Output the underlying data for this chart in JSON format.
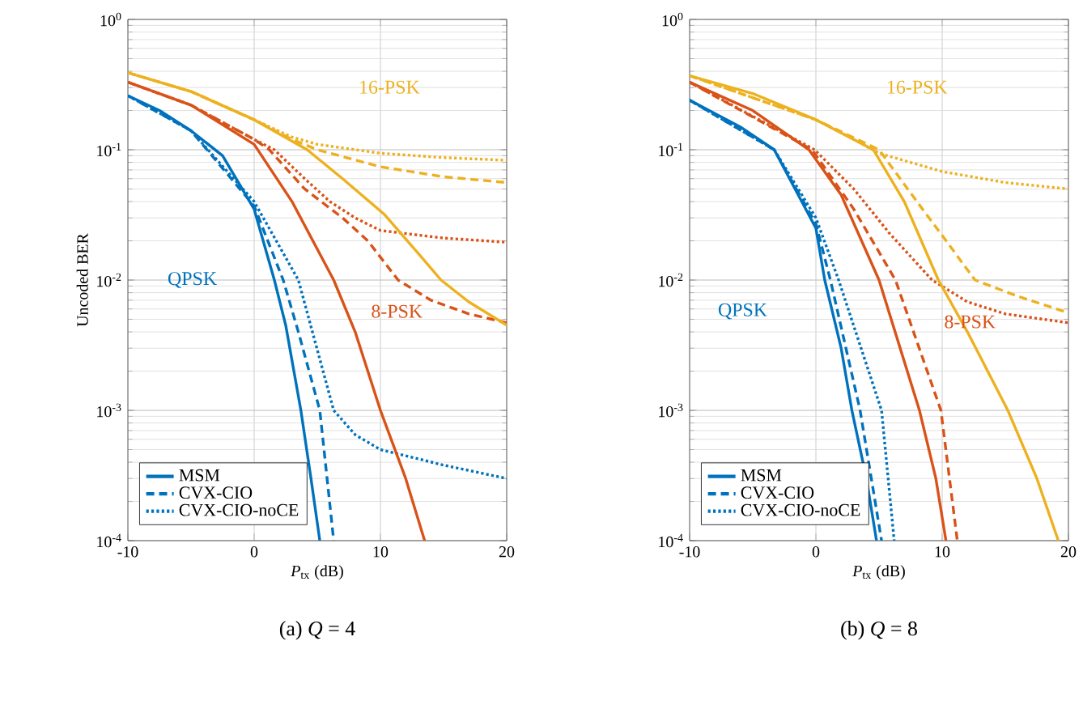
{
  "chart_data": [
    {
      "type": "line",
      "title": "(a) *Q* = 4",
      "xlabel": "*P*$_{tx}$ (dB)",
      "ylabel": "Uncoded BER",
      "log": "y",
      "grid": true,
      "legend": "bottom left",
      "xlim": [
        -10,
        20
      ],
      "ylim": [
        0.0001,
        1
      ],
      "xticks": [
        -10,
        0,
        10,
        20
      ],
      "yticks": [
        {
          "value": 0.0001,
          "label": "10$^{-4}$"
        },
        {
          "value": 0.001,
          "label": "10$^{-3}$"
        },
        {
          "value": 0.01,
          "label": "10$^{-2}$"
        },
        {
          "value": 0.1,
          "label": "10$^{-1}$"
        },
        {
          "value": 1,
          "label": "10$^{0}$"
        }
      ],
      "annotations": [
        "QPSK",
        "8-PSK",
        "16-PSK"
      ],
      "series": [
        {
          "name": "MSM",
          "color": "#0072bd",
          "line_style": "solid",
          "x": [
            -10,
            -7.5,
            -5,
            -2.5,
            0,
            1.6,
            2.5,
            3.7,
            4.5,
            5.2
          ],
          "values": [
            0.26,
            0.2,
            0.14,
            0.09,
            0.035,
            0.01,
            0.0045,
            0.001,
            0.0003,
            0.0001
          ]
        },
        {
          "name": "CVX-CIO",
          "color": "#0072bd",
          "line_style": "dashed",
          "x": [
            -10,
            -5,
            0,
            2.3,
            3.5,
            5.2,
            6.3
          ],
          "values": [
            0.26,
            0.14,
            0.037,
            0.01,
            0.004,
            0.001,
            0.0001
          ]
        },
        {
          "name": "CVX-CIO-noCE",
          "color": "#0072bd",
          "line_style": "dotted",
          "x": [
            -10,
            -5,
            0,
            3.5,
            6.3,
            8,
            10,
            15,
            20
          ],
          "values": [
            0.26,
            0.14,
            0.04,
            0.01,
            0.001,
            0.00065,
            0.0005,
            0.00038,
            0.0003
          ]
        },
        {
          "color": "#d95319",
          "line_style": "solid",
          "x": [
            -10,
            -5,
            0,
            3,
            6.3,
            8,
            10,
            12,
            13.5
          ],
          "values": [
            0.33,
            0.22,
            0.11,
            0.04,
            0.01,
            0.004,
            0.001,
            0.0003,
            0.0001
          ]
        },
        {
          "color": "#d95319",
          "line_style": "dashed",
          "x": [
            -10,
            -5,
            0,
            1.2,
            4,
            7,
            9,
            11.4,
            14,
            17,
            20
          ],
          "values": [
            0.33,
            0.22,
            0.12,
            0.1,
            0.05,
            0.03,
            0.02,
            0.01,
            0.007,
            0.0055,
            0.0047
          ]
        },
        {
          "color": "#d95319",
          "line_style": "dotted",
          "x": [
            -10,
            -5,
            0,
            1.6,
            4,
            6,
            8,
            10,
            15,
            20
          ],
          "values": [
            0.33,
            0.22,
            0.12,
            0.1,
            0.06,
            0.04,
            0.03,
            0.024,
            0.021,
            0.0195
          ]
        },
        {
          "color": "#edb120",
          "line_style": "solid",
          "x": [
            -10,
            -5,
            0,
            4.2,
            7,
            10.3,
            13,
            14.8,
            17,
            20
          ],
          "values": [
            0.39,
            0.28,
            0.17,
            0.1,
            0.06,
            0.032,
            0.016,
            0.01,
            0.0068,
            0.0045
          ]
        },
        {
          "color": "#edb120",
          "line_style": "dashed",
          "x": [
            -10,
            -5,
            0,
            3,
            5,
            10,
            15,
            20
          ],
          "values": [
            0.39,
            0.28,
            0.17,
            0.12,
            0.1,
            0.074,
            0.062,
            0.056
          ]
        },
        {
          "color": "#edb120",
          "line_style": "dotted",
          "x": [
            -10,
            -5,
            0,
            3,
            5,
            10,
            15,
            20
          ],
          "values": [
            0.39,
            0.28,
            0.17,
            0.125,
            0.11,
            0.094,
            0.087,
            0.083
          ]
        }
      ]
    },
    {
      "type": "line",
      "title": "(b) *Q* = 8",
      "xlabel": "*P*$_{tx}$ (dB)",
      "log": "y",
      "grid": true,
      "legend": "bottom left",
      "xlim": [
        -10,
        20
      ],
      "ylim": [
        0.0001,
        1
      ],
      "xticks": [
        -10,
        0,
        10,
        20
      ],
      "yticks": [
        {
          "value": 0.0001,
          "label": "10$^{-4}$"
        },
        {
          "value": 0.001,
          "label": "10$^{-3}$"
        },
        {
          "value": 0.01,
          "label": "10$^{-2}$"
        },
        {
          "value": 0.1,
          "label": "10$^{-1}$"
        },
        {
          "value": 1,
          "label": "10$^{0}$"
        }
      ],
      "annotations": [
        "QPSK",
        "8-PSK",
        "16-PSK"
      ],
      "series": [
        {
          "name": "MSM",
          "color": "#0072bd",
          "line_style": "solid",
          "x": [
            -10,
            -6,
            -3.3,
            0,
            0.7,
            2,
            2.85,
            4,
            4.8
          ],
          "values": [
            0.24,
            0.15,
            0.1,
            0.025,
            0.01,
            0.003,
            0.001,
            0.0003,
            0.0001
          ]
        },
        {
          "name": "CVX-CIO",
          "color": "#0072bd",
          "line_style": "dashed",
          "x": [
            -10,
            -3.3,
            0,
            1.15,
            3.5,
            5.2
          ],
          "values": [
            0.24,
            0.1,
            0.027,
            0.01,
            0.001,
            0.0001
          ]
        },
        {
          "name": "CVX-CIO-noCE",
          "color": "#0072bd",
          "line_style": "dotted",
          "x": [
            -10,
            -3.3,
            0,
            1.8,
            5.2,
            6.2
          ],
          "values": [
            0.24,
            0.1,
            0.03,
            0.01,
            0.001,
            0.0001
          ]
        },
        {
          "color": "#d95319",
          "line_style": "solid",
          "x": [
            -10,
            -5,
            -0.55,
            2,
            5,
            8.2,
            9.5,
            10.3
          ],
          "values": [
            0.33,
            0.2,
            0.1,
            0.045,
            0.01,
            0.001,
            0.0003,
            0.0001
          ]
        },
        {
          "color": "#d95319",
          "line_style": "dashed",
          "x": [
            -10,
            -0.3,
            3,
            6.3,
            9.9,
            11.2
          ],
          "values": [
            0.33,
            0.1,
            0.035,
            0.01,
            0.001,
            0.0001
          ]
        },
        {
          "color": "#d95319",
          "line_style": "dotted",
          "x": [
            -10,
            -0.1,
            3,
            5.8,
            9.2,
            12,
            15,
            20
          ],
          "values": [
            0.33,
            0.1,
            0.05,
            0.023,
            0.01,
            0.0068,
            0.0055,
            0.0047
          ]
        },
        {
          "color": "#edb120",
          "line_style": "solid",
          "x": [
            -10,
            -5,
            0,
            4.55,
            7,
            9.7,
            12,
            15.2,
            17.5,
            19.2
          ],
          "values": [
            0.37,
            0.27,
            0.17,
            0.1,
            0.04,
            0.01,
            0.004,
            0.001,
            0.0003,
            0.0001
          ]
        },
        {
          "color": "#edb120",
          "line_style": "dashed",
          "x": [
            -10,
            0,
            5,
            8,
            10,
            12.6,
            16,
            20
          ],
          "values": [
            0.37,
            0.17,
            0.1,
            0.04,
            0.022,
            0.01,
            0.0075,
            0.0056
          ]
        },
        {
          "color": "#edb120",
          "line_style": "dotted",
          "x": [
            -10,
            0,
            3,
            5,
            10,
            15,
            20
          ],
          "values": [
            0.37,
            0.17,
            0.12,
            0.094,
            0.068,
            0.056,
            0.05
          ]
        }
      ]
    }
  ]
}
